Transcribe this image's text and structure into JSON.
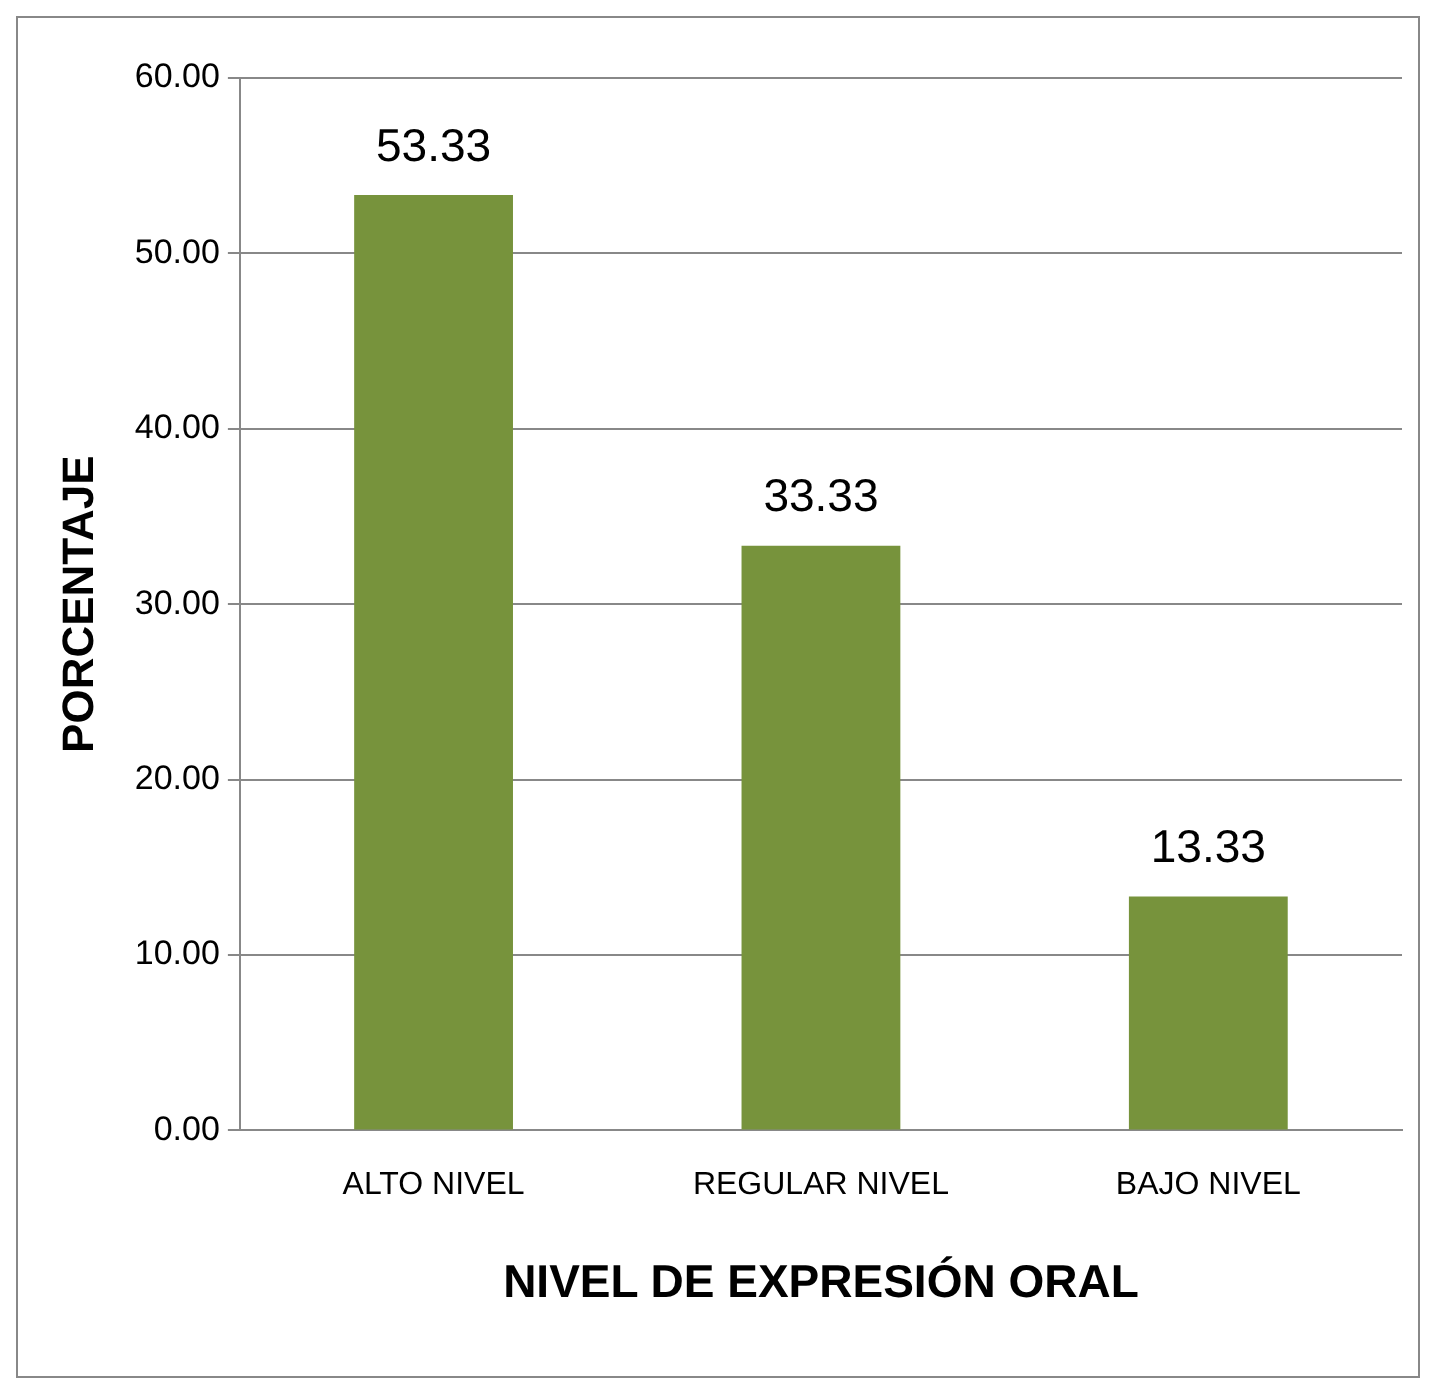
{
  "chart_data": {
    "type": "bar",
    "xlabel": "NIVEL DE EXPRESIÓN ORAL",
    "ylabel": "PORCENTAJE",
    "categories": [
      "ALTO NIVEL",
      "REGULAR NIVEL",
      "BAJO NIVEL"
    ],
    "values": [
      53.33,
      33.33,
      13.33
    ],
    "color": "#77933c",
    "ylim": [
      0,
      60
    ],
    "yticks": [
      {
        "value": 0,
        "label": "0.00"
      },
      {
        "value": 10,
        "label": "10.00"
      },
      {
        "value": 20,
        "label": "20.00"
      },
      {
        "value": 30,
        "label": "30.00"
      },
      {
        "value": 40,
        "label": "40.00"
      },
      {
        "value": 50,
        "label": "50.00"
      },
      {
        "value": 60,
        "label": "60.00"
      }
    ],
    "grid": "y",
    "data_labels": true,
    "legend": false
  }
}
